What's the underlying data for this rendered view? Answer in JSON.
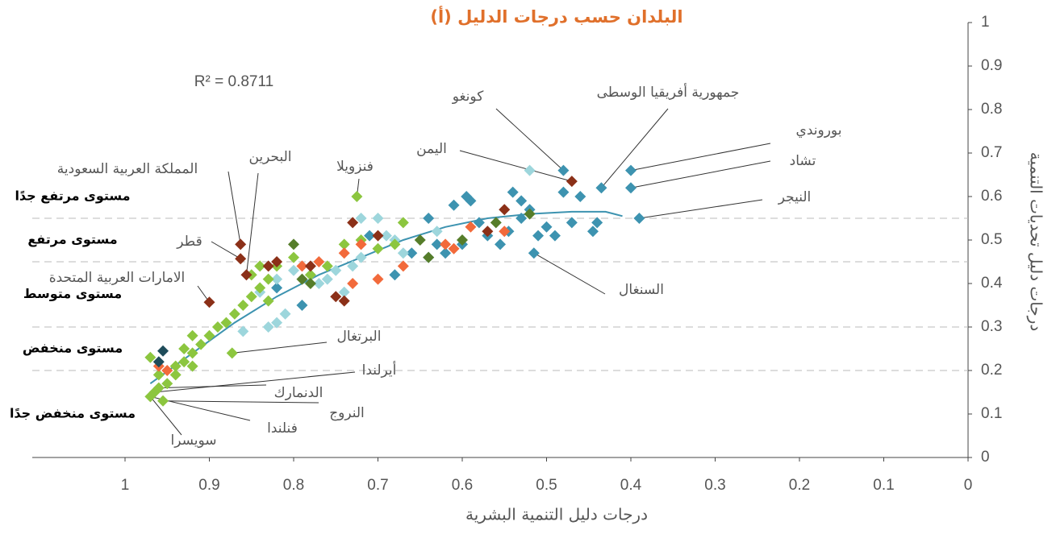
{
  "chart_data": {
    "type": "scatter",
    "title": "(أ) البلدان حسب درجات الدليل",
    "xlabel": "درجات دليل التنمية البشرية",
    "ylabel": "درجات دليل تحديات التنمية",
    "r2_label": "R² = 0.8711",
    "xlim": [
      0,
      1
    ],
    "x_reversed": true,
    "ylim": [
      0,
      1
    ],
    "xticks": [
      1,
      0.9,
      0.8,
      0.7,
      0.6,
      0.5,
      0.4,
      0.3,
      0.2,
      0.1,
      0
    ],
    "yticks": [
      0,
      0.1,
      0.2,
      0.3,
      0.4,
      0.5,
      0.6,
      0.7,
      0.8,
      0.9,
      1
    ],
    "levels": {
      "thresholds": [
        0.2,
        0.3,
        0.45,
        0.55
      ],
      "labels": [
        "مستوى منخفض جدًا",
        "مستوى منخفض",
        "مستوى متوسط",
        "مستوى مرتفع",
        "مستوى مرتفع جدًا"
      ]
    },
    "series": [
      {
        "color": "#3d93b0",
        "x": [
          0.4,
          0.4,
          0.39,
          0.435,
          0.48,
          0.515,
          0.46,
          0.48,
          0.5,
          0.49,
          0.51,
          0.44,
          0.445,
          0.47,
          0.52,
          0.53,
          0.54,
          0.53,
          0.545,
          0.555,
          0.57,
          0.58,
          0.59,
          0.595,
          0.61,
          0.6,
          0.62,
          0.64,
          0.63,
          0.64,
          0.66,
          0.68,
          0.71,
          0.79,
          0.82
        ],
        "values": [
          0.66,
          0.62,
          0.55,
          0.62,
          0.66,
          0.47,
          0.6,
          0.61,
          0.53,
          0.51,
          0.51,
          0.54,
          0.52,
          0.54,
          0.57,
          0.59,
          0.61,
          0.55,
          0.52,
          0.49,
          0.51,
          0.54,
          0.59,
          0.6,
          0.58,
          0.49,
          0.47,
          0.55,
          0.49,
          0.46,
          0.47,
          0.42,
          0.51,
          0.35,
          0.39
        ]
      },
      {
        "color": "#9dd6dc",
        "x": [
          0.52,
          0.72,
          0.69,
          0.67,
          0.72,
          0.73,
          0.75,
          0.76,
          0.74,
          0.77,
          0.78,
          0.8,
          0.82,
          0.83,
          0.82,
          0.81,
          0.86,
          0.7,
          0.68,
          0.84,
          0.63
        ],
        "values": [
          0.66,
          0.55,
          0.51,
          0.47,
          0.46,
          0.44,
          0.43,
          0.41,
          0.38,
          0.4,
          0.42,
          0.43,
          0.41,
          0.3,
          0.31,
          0.33,
          0.29,
          0.55,
          0.5,
          0.38,
          0.52
        ]
      },
      {
        "color": "#8cc63f",
        "x": [
          0.725,
          0.873,
          0.97,
          0.965,
          0.96,
          0.955,
          0.95,
          0.94,
          0.93,
          0.92,
          0.91,
          0.9,
          0.89,
          0.88,
          0.87,
          0.86,
          0.85,
          0.84,
          0.83,
          0.84,
          0.82,
          0.8,
          0.78,
          0.76,
          0.74,
          0.72,
          0.7,
          0.68,
          0.67,
          0.93,
          0.94,
          0.97,
          0.96,
          0.92,
          0.85,
          0.83,
          0.92
        ],
        "values": [
          0.6,
          0.24,
          0.14,
          0.15,
          0.16,
          0.13,
          0.17,
          0.19,
          0.22,
          0.24,
          0.26,
          0.28,
          0.3,
          0.31,
          0.33,
          0.35,
          0.37,
          0.39,
          0.41,
          0.44,
          0.44,
          0.46,
          0.42,
          0.44,
          0.49,
          0.5,
          0.48,
          0.49,
          0.54,
          0.25,
          0.21,
          0.23,
          0.19,
          0.21,
          0.42,
          0.36,
          0.28
        ]
      },
      {
        "color": "#567d2a",
        "x": [
          0.8,
          0.78,
          0.64,
          0.65,
          0.6,
          0.56,
          0.52,
          0.79
        ],
        "values": [
          0.49,
          0.4,
          0.46,
          0.5,
          0.5,
          0.54,
          0.56,
          0.41
        ]
      },
      {
        "color": "#f26a3b",
        "x": [
          0.96,
          0.95,
          0.77,
          0.74,
          0.7,
          0.73,
          0.67,
          0.62,
          0.61,
          0.55,
          0.59,
          0.79,
          0.72
        ],
        "values": [
          0.21,
          0.2,
          0.45,
          0.47,
          0.41,
          0.4,
          0.44,
          0.49,
          0.48,
          0.52,
          0.53,
          0.44,
          0.49
        ]
      },
      {
        "color": "#8b3018",
        "x": [
          0.47,
          0.863,
          0.856,
          0.863,
          0.9,
          0.73,
          0.7,
          0.78,
          0.82,
          0.83,
          0.75,
          0.74,
          0.55,
          0.57
        ],
        "values": [
          0.635,
          0.49,
          0.42,
          0.457,
          0.357,
          0.54,
          0.51,
          0.44,
          0.45,
          0.44,
          0.37,
          0.36,
          0.57,
          0.52
        ]
      },
      {
        "color": "#1e4c5a",
        "x": [
          0.955,
          0.96
        ],
        "values": [
          0.245,
          0.22
        ]
      }
    ],
    "trendline": {
      "color": "#3d93b0",
      "x": [
        0.97,
        0.92,
        0.87,
        0.82,
        0.77,
        0.72,
        0.67,
        0.62,
        0.57,
        0.52,
        0.47,
        0.43,
        0.41
      ],
      "values": [
        0.17,
        0.24,
        0.31,
        0.37,
        0.42,
        0.46,
        0.5,
        0.53,
        0.55,
        0.56,
        0.565,
        0.565,
        0.555
      ]
    },
    "annotations": [
      {
        "text": "بوروندي",
        "x": 0.4,
        "y": 0.66
      },
      {
        "text": "تشاد",
        "x": 0.4,
        "y": 0.62
      },
      {
        "text": "النيجر",
        "x": 0.39,
        "y": 0.55
      },
      {
        "text": "جمهورية أفريقيا الوسطى",
        "x": 0.435,
        "y": 0.62
      },
      {
        "text": "كونغو",
        "x": 0.48,
        "y": 0.66
      },
      {
        "text": "اليمن",
        "x": 0.47,
        "y": 0.635
      },
      {
        "text": "السنغال",
        "x": 0.515,
        "y": 0.47
      },
      {
        "text": "فنزويلا",
        "x": 0.725,
        "y": 0.6
      },
      {
        "text": "البحرين",
        "x": 0.856,
        "y": 0.42
      },
      {
        "text": "المملكة العربية السعودية",
        "x": 0.863,
        "y": 0.49
      },
      {
        "text": "قطر",
        "x": 0.863,
        "y": 0.457
      },
      {
        "text": "الامارات العربية المتحدة",
        "x": 0.9,
        "y": 0.357
      },
      {
        "text": "البرتغال",
        "x": 0.873,
        "y": 0.24
      },
      {
        "text": "أيرلندا",
        "x": 0.965,
        "y": 0.15
      },
      {
        "text": "الدنمارك",
        "x": 0.96,
        "y": 0.16
      },
      {
        "text": "النروج",
        "x": 0.955,
        "y": 0.13
      },
      {
        "text": "فنلندا",
        "x": 0.97,
        "y": 0.14
      },
      {
        "text": "سويسرا",
        "x": 0.97,
        "y": 0.14
      }
    ]
  }
}
